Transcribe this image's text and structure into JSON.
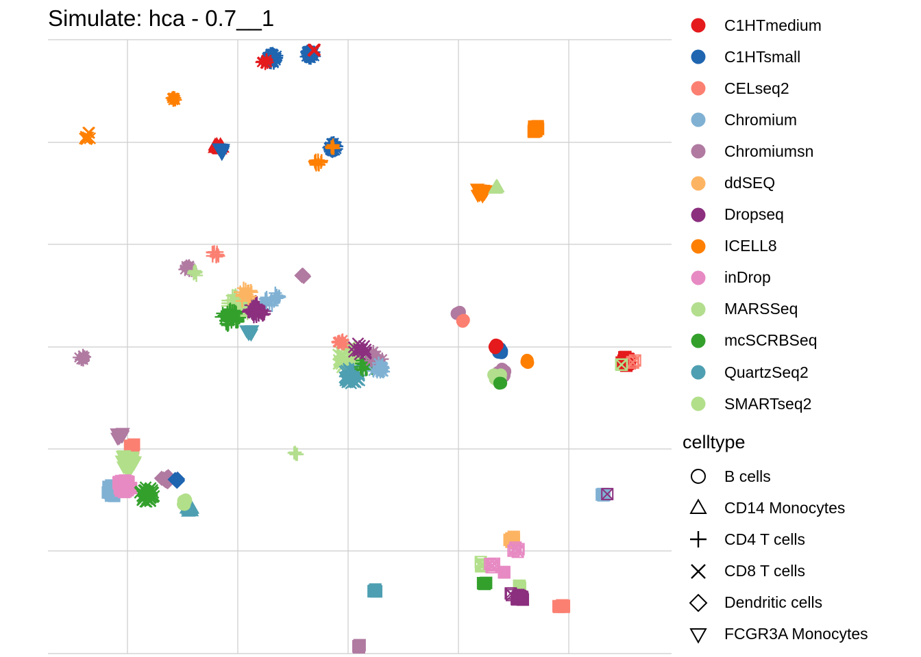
{
  "chart_data": {
    "type": "scatter",
    "title": "Simulate: hca - 0.7__1",
    "xlabel": "",
    "ylabel": "",
    "grid": true,
    "legend_position": "right",
    "color_legend": {
      "title": "",
      "entries": [
        {
          "name": "C1HTmedium",
          "color": "#E41A1C"
        },
        {
          "name": "C1HTsmall",
          "color": "#1F65B0"
        },
        {
          "name": "CELseq2",
          "color": "#FB8072"
        },
        {
          "name": "Chromium",
          "color": "#80B1D3"
        },
        {
          "name": "Chromiumsn",
          "color": "#B07AA1"
        },
        {
          "name": "ddSEQ",
          "color": "#FDB462"
        },
        {
          "name": "Dropseq",
          "color": "#8B2F7E"
        },
        {
          "name": "ICELL8",
          "color": "#FF7F00"
        },
        {
          "name": "inDrop",
          "color": "#E78AC3"
        },
        {
          "name": "MARSSeq",
          "color": "#B3DE8E"
        },
        {
          "name": "mcSCRBSeq",
          "color": "#33A02C"
        },
        {
          "name": "QuartzSeq2",
          "color": "#4E9FB1"
        },
        {
          "name": "SMARTseq2",
          "color": "#B2DF8A"
        }
      ]
    },
    "shape_legend": {
      "title": "celltype",
      "entries": [
        {
          "name": "B cells",
          "shape": "circle"
        },
        {
          "name": "CD14 Monocytes",
          "shape": "triangle"
        },
        {
          "name": "CD4 T cells",
          "shape": "plus"
        },
        {
          "name": "CD8 T cells",
          "shape": "cross"
        },
        {
          "name": "Dendritic cells",
          "shape": "diamond"
        },
        {
          "name": "FCGR3A Monocytes",
          "shape": "triangle-down"
        }
      ]
    },
    "clusters": [
      {
        "x": 0.52,
        "y": 6.0,
        "color": "#FF7F00",
        "shape": "cross",
        "n": 10,
        "spread": 0.05
      },
      {
        "x": 1.65,
        "y": 6.5,
        "color": "#FF7F00",
        "shape": "asterisk",
        "n": 6,
        "spread": 0.03
      },
      {
        "x": 2.25,
        "y": 5.85,
        "color": "#E41A1C",
        "shape": "triangle",
        "n": 8,
        "spread": 0.06
      },
      {
        "x": 2.3,
        "y": 5.8,
        "color": "#1F65B0",
        "shape": "triangle-down",
        "n": 8,
        "spread": 0.06
      },
      {
        "x": 2.95,
        "y": 7.05,
        "color": "#1F65B0",
        "shape": "asterisk",
        "n": 40,
        "spread": 0.07
      },
      {
        "x": 2.85,
        "y": 7.0,
        "color": "#E41A1C",
        "shape": "asterisk",
        "n": 6,
        "spread": 0.04
      },
      {
        "x": 3.45,
        "y": 7.1,
        "color": "#1F65B0",
        "shape": "asterisk",
        "n": 30,
        "spread": 0.06
      },
      {
        "x": 3.5,
        "y": 7.15,
        "color": "#E41A1C",
        "shape": "cross",
        "n": 4,
        "spread": 0.02
      },
      {
        "x": 3.75,
        "y": 5.85,
        "color": "#1F65B0",
        "shape": "asterisk",
        "n": 25,
        "spread": 0.06
      },
      {
        "x": 3.75,
        "y": 5.85,
        "color": "#FF7F00",
        "shape": "plus",
        "n": 6,
        "spread": 0.03
      },
      {
        "x": 3.55,
        "y": 5.65,
        "color": "#FF7F00",
        "shape": "plus",
        "n": 10,
        "spread": 0.05
      },
      {
        "x": 6.4,
        "y": 6.1,
        "color": "#FF7F00",
        "shape": "square",
        "n": 12,
        "spread": 0.05
      },
      {
        "x": 5.7,
        "y": 5.25,
        "color": "#FF7F00",
        "shape": "triangle-down",
        "n": 14,
        "spread": 0.07
      },
      {
        "x": 5.9,
        "y": 5.3,
        "color": "#B3DE8E",
        "shape": "triangle",
        "n": 5,
        "spread": 0.03
      },
      {
        "x": 0.45,
        "y": 3.0,
        "color": "#B07AA1",
        "shape": "asterisk",
        "n": 8,
        "spread": 0.04
      },
      {
        "x": 1.85,
        "y": 4.2,
        "color": "#B07AA1",
        "shape": "asterisk",
        "n": 12,
        "spread": 0.05
      },
      {
        "x": 1.95,
        "y": 4.15,
        "color": "#B3DE8E",
        "shape": "plus",
        "n": 8,
        "spread": 0.04
      },
      {
        "x": 2.2,
        "y": 4.4,
        "color": "#FB8072",
        "shape": "plus",
        "n": 10,
        "spread": 0.05
      },
      {
        "x": 2.5,
        "y": 3.7,
        "color": "#B2DF8A",
        "shape": "plus",
        "n": 70,
        "spread": 0.16
      },
      {
        "x": 2.4,
        "y": 3.55,
        "color": "#33A02C",
        "shape": "plus",
        "n": 35,
        "spread": 0.12
      },
      {
        "x": 2.75,
        "y": 3.65,
        "color": "#8B2F7E",
        "shape": "plus",
        "n": 40,
        "spread": 0.12
      },
      {
        "x": 2.95,
        "y": 3.8,
        "color": "#80B1D3",
        "shape": "plus",
        "n": 20,
        "spread": 0.1
      },
      {
        "x": 2.65,
        "y": 3.35,
        "color": "#4E9FB1",
        "shape": "triangle-down",
        "n": 10,
        "spread": 0.05
      },
      {
        "x": 2.6,
        "y": 3.85,
        "color": "#FDB462",
        "shape": "plus",
        "n": 15,
        "spread": 0.1
      },
      {
        "x": 3.35,
        "y": 4.1,
        "color": "#B07AA1",
        "shape": "diamond",
        "n": 4,
        "spread": 0.02
      },
      {
        "x": 3.95,
        "y": 3.0,
        "color": "#B2DF8A",
        "shape": "cross",
        "n": 60,
        "spread": 0.16
      },
      {
        "x": 4.0,
        "y": 2.75,
        "color": "#4E9FB1",
        "shape": "cross",
        "n": 35,
        "spread": 0.12
      },
      {
        "x": 4.2,
        "y": 2.9,
        "color": "#33A02C",
        "shape": "plus",
        "n": 25,
        "spread": 0.1
      },
      {
        "x": 4.3,
        "y": 3.0,
        "color": "#B07AA1",
        "shape": "asterisk",
        "n": 15,
        "spread": 0.1
      },
      {
        "x": 3.85,
        "y": 3.2,
        "color": "#FB8072",
        "shape": "asterisk",
        "n": 10,
        "spread": 0.05
      },
      {
        "x": 4.35,
        "y": 2.85,
        "color": "#80B1D3",
        "shape": "asterisk",
        "n": 12,
        "spread": 0.08
      },
      {
        "x": 4.1,
        "y": 3.1,
        "color": "#8B2F7E",
        "shape": "cross",
        "n": 15,
        "spread": 0.1
      },
      {
        "x": 5.4,
        "y": 3.6,
        "color": "#B07AA1",
        "shape": "circle",
        "n": 5,
        "spread": 0.03
      },
      {
        "x": 5.45,
        "y": 3.5,
        "color": "#FB8072",
        "shape": "circle",
        "n": 3,
        "spread": 0.02
      },
      {
        "x": 5.95,
        "y": 3.1,
        "color": "#1F65B0",
        "shape": "circle",
        "n": 8,
        "spread": 0.04
      },
      {
        "x": 5.9,
        "y": 3.15,
        "color": "#E41A1C",
        "shape": "circle",
        "n": 4,
        "spread": 0.03
      },
      {
        "x": 5.95,
        "y": 2.8,
        "color": "#B07AA1",
        "shape": "circle",
        "n": 18,
        "spread": 0.07
      },
      {
        "x": 5.9,
        "y": 2.75,
        "color": "#B3DE8E",
        "shape": "circle",
        "n": 10,
        "spread": 0.06
      },
      {
        "x": 5.95,
        "y": 2.65,
        "color": "#33A02C",
        "shape": "circle",
        "n": 3,
        "spread": 0.02
      },
      {
        "x": 6.3,
        "y": 2.95,
        "color": "#FF7F00",
        "shape": "circle",
        "n": 5,
        "spread": 0.02
      },
      {
        "x": 7.6,
        "y": 2.95,
        "color": "#E41A1C",
        "shape": "square",
        "n": 18,
        "spread": 0.06
      },
      {
        "x": 7.7,
        "y": 2.95,
        "color": "#FB8072",
        "shape": "square-cross",
        "n": 3,
        "spread": 0.03
      },
      {
        "x": 7.55,
        "y": 2.9,
        "color": "#B2DF8A",
        "shape": "square-cross",
        "n": 2,
        "spread": 0.02
      },
      {
        "x": 0.95,
        "y": 1.95,
        "color": "#B07AA1",
        "shape": "triangle-down",
        "n": 10,
        "spread": 0.05
      },
      {
        "x": 1.1,
        "y": 1.8,
        "color": "#FB8072",
        "shape": "square",
        "n": 8,
        "spread": 0.05
      },
      {
        "x": 1.05,
        "y": 1.6,
        "color": "#B2DF8A",
        "shape": "triangle-down",
        "n": 40,
        "spread": 0.1
      },
      {
        "x": 0.85,
        "y": 1.2,
        "color": "#80B1D3",
        "shape": "square",
        "n": 15,
        "spread": 0.08
      },
      {
        "x": 1.0,
        "y": 1.25,
        "color": "#E78AC3",
        "shape": "square",
        "n": 35,
        "spread": 0.1
      },
      {
        "x": 1.3,
        "y": 1.15,
        "color": "#33A02C",
        "shape": "cross",
        "n": 40,
        "spread": 0.1
      },
      {
        "x": 1.55,
        "y": 1.35,
        "color": "#B07AA1",
        "shape": "diamond",
        "n": 8,
        "spread": 0.06
      },
      {
        "x": 1.7,
        "y": 1.35,
        "color": "#1F65B0",
        "shape": "diamond",
        "n": 4,
        "spread": 0.03
      },
      {
        "x": 1.85,
        "y": 0.95,
        "color": "#4E9FB1",
        "shape": "triangle",
        "n": 10,
        "spread": 0.05
      },
      {
        "x": 1.8,
        "y": 1.05,
        "color": "#B2DF8A",
        "shape": "circle",
        "n": 6,
        "spread": 0.04
      },
      {
        "x": 3.25,
        "y": 1.7,
        "color": "#B3DE8E",
        "shape": "plus",
        "n": 6,
        "spread": 0.03
      },
      {
        "x": 7.3,
        "y": 1.15,
        "color": "#80B1D3",
        "shape": "square",
        "n": 4,
        "spread": 0.02
      },
      {
        "x": 7.35,
        "y": 1.15,
        "color": "#8B2F7E",
        "shape": "square-cross",
        "n": 1,
        "spread": 0.01
      },
      {
        "x": 5.7,
        "y": 0.2,
        "color": "#B2DF8A",
        "shape": "square-cross",
        "n": 4,
        "spread": 0.04
      },
      {
        "x": 5.85,
        "y": 0.2,
        "color": "#E78AC3",
        "shape": "square-cross",
        "n": 5,
        "spread": 0.04
      },
      {
        "x": 6.1,
        "y": 0.55,
        "color": "#FDB462",
        "shape": "square",
        "n": 6,
        "spread": 0.04
      },
      {
        "x": 6.15,
        "y": 0.4,
        "color": "#E78AC3",
        "shape": "square-cross",
        "n": 5,
        "spread": 0.04
      },
      {
        "x": 6.0,
        "y": 0.1,
        "color": "#E78AC3",
        "shape": "square",
        "n": 2,
        "spread": 0.02
      },
      {
        "x": 5.75,
        "y": -0.05,
        "color": "#33A02C",
        "shape": "square",
        "n": 5,
        "spread": 0.03
      },
      {
        "x": 6.2,
        "y": -0.1,
        "color": "#B2DF8A",
        "shape": "square",
        "n": 3,
        "spread": 0.02
      },
      {
        "x": 6.2,
        "y": -0.25,
        "color": "#8B2F7E",
        "shape": "square",
        "n": 12,
        "spread": 0.05
      },
      {
        "x": 6.1,
        "y": -0.2,
        "color": "#8B2F7E",
        "shape": "square-cross",
        "n": 2,
        "spread": 0.02
      },
      {
        "x": 6.75,
        "y": -0.35,
        "color": "#FB8072",
        "shape": "square",
        "n": 6,
        "spread": 0.04
      },
      {
        "x": 4.3,
        "y": -0.15,
        "color": "#4E9FB1",
        "shape": "square",
        "n": 5,
        "spread": 0.02
      },
      {
        "x": 4.1,
        "y": -0.9,
        "color": "#B07AA1",
        "shape": "square",
        "n": 4,
        "spread": 0.02
      }
    ],
    "xlim": [
      0,
      8.2
    ],
    "ylim": [
      -1.0,
      7.3
    ]
  }
}
